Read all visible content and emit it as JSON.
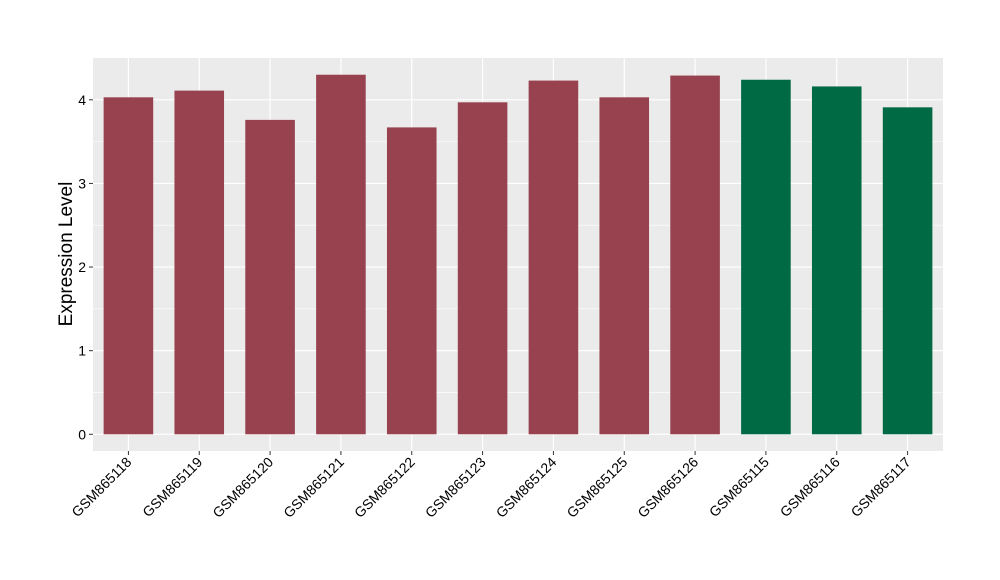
{
  "chart_data": {
    "type": "bar",
    "title": "",
    "xlabel": "",
    "ylabel": "Expression Level",
    "ylim": [
      -0.2,
      4.5
    ],
    "yticks": [
      0,
      1,
      2,
      3,
      4
    ],
    "grid": true,
    "categories": [
      "GSM865118",
      "GSM865119",
      "GSM865120",
      "GSM865121",
      "GSM865122",
      "GSM865123",
      "GSM865124",
      "GSM865125",
      "GSM865126",
      "GSM865115",
      "GSM865116",
      "GSM865117"
    ],
    "values": [
      4.03,
      4.11,
      3.76,
      4.3,
      3.67,
      3.97,
      4.23,
      4.03,
      4.29,
      4.24,
      4.16,
      3.91
    ],
    "groups": [
      0,
      0,
      0,
      0,
      0,
      0,
      0,
      0,
      0,
      1,
      1,
      1
    ],
    "group_colors": [
      "#99424f",
      "#006a44"
    ],
    "panel_color": "#ebebeb",
    "grid_color": "#ffffff"
  }
}
